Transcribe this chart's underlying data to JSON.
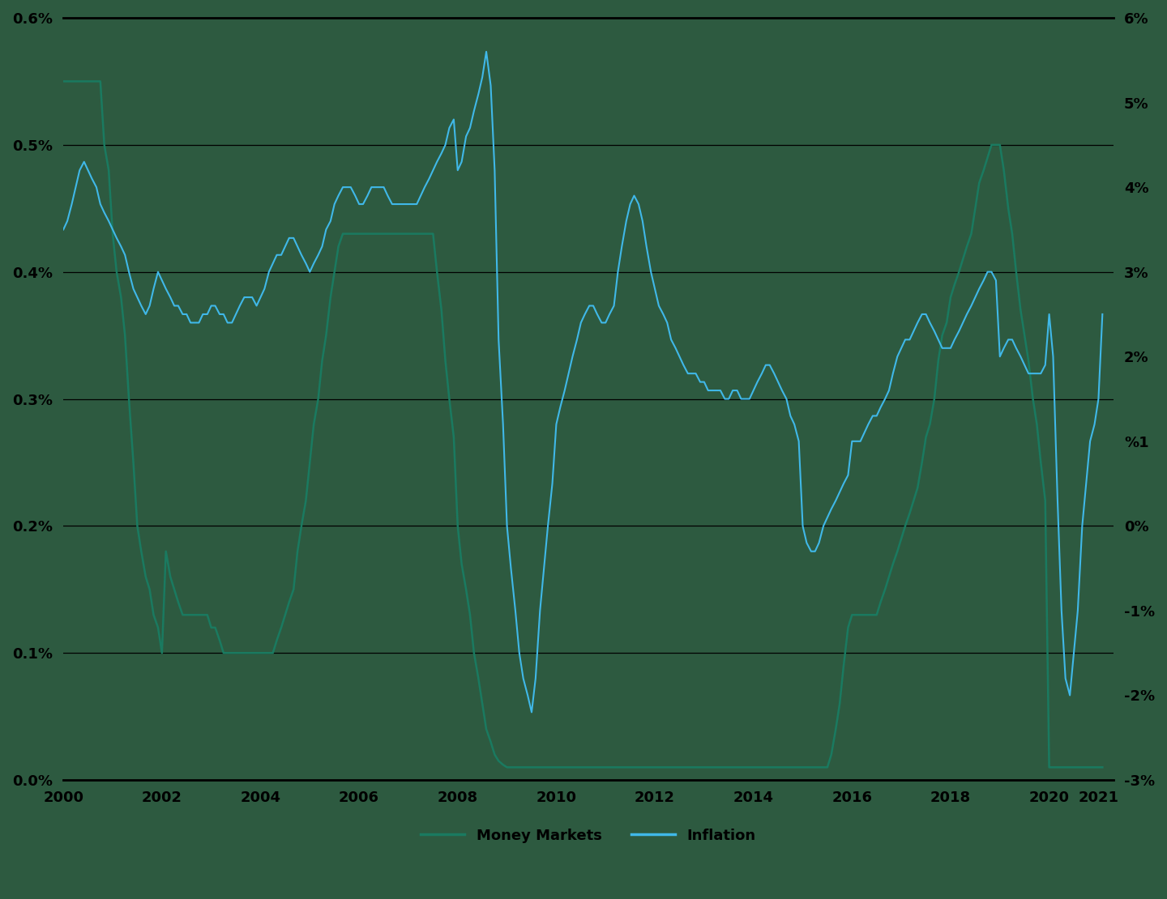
{
  "background_color": "#2d5a40",
  "line_color_mm": "#1a7a60",
  "line_color_inf": "#40b8e8",
  "grid_color": "#000000",
  "legend_mm": "Money Markets",
  "legend_inf": "Inflation",
  "left_ylim": [
    0.0,
    0.006
  ],
  "right_ylim": [
    -0.03,
    0.06
  ],
  "left_yticks": [
    0.0,
    0.001,
    0.002,
    0.003,
    0.004,
    0.005,
    0.006
  ],
  "left_yticklabels": [
    "0.0%",
    "0.1%",
    "0.2%",
    "0.3%",
    "0.4%",
    "0.5%",
    "0.6%"
  ],
  "right_yticks": [
    -0.03,
    -0.02,
    -0.01,
    0.0,
    0.01,
    0.02,
    0.03,
    0.04,
    0.05,
    0.06
  ],
  "right_yticklabels": [
    "-3%",
    "-2%",
    "-1%",
    "0%",
    "%1",
    "2%",
    "3%",
    "4%",
    "5%",
    "6%"
  ],
  "xlim": [
    2000,
    2021.3
  ],
  "xticks": [
    2000,
    2002,
    2004,
    2006,
    2008,
    2010,
    2012,
    2014,
    2016,
    2018,
    2020,
    2021
  ],
  "money_markets_x": [
    2000.0,
    2000.08,
    2000.17,
    2000.25,
    2000.33,
    2000.42,
    2000.5,
    2000.58,
    2000.67,
    2000.75,
    2000.83,
    2000.92,
    2001.0,
    2001.08,
    2001.17,
    2001.25,
    2001.33,
    2001.42,
    2001.5,
    2001.58,
    2001.67,
    2001.75,
    2001.83,
    2001.92,
    2002.0,
    2002.08,
    2002.17,
    2002.25,
    2002.33,
    2002.42,
    2002.5,
    2002.58,
    2002.67,
    2002.75,
    2002.83,
    2002.92,
    2003.0,
    2003.08,
    2003.17,
    2003.25,
    2003.33,
    2003.42,
    2003.5,
    2003.58,
    2003.67,
    2003.75,
    2003.83,
    2003.92,
    2004.0,
    2004.08,
    2004.17,
    2004.25,
    2004.33,
    2004.42,
    2004.5,
    2004.58,
    2004.67,
    2004.75,
    2004.83,
    2004.92,
    2005.0,
    2005.08,
    2005.17,
    2005.25,
    2005.33,
    2005.42,
    2005.5,
    2005.58,
    2005.67,
    2005.75,
    2005.83,
    2005.92,
    2006.0,
    2006.08,
    2006.17,
    2006.25,
    2006.33,
    2006.42,
    2006.5,
    2006.58,
    2006.67,
    2006.75,
    2006.83,
    2006.92,
    2007.0,
    2007.08,
    2007.17,
    2007.25,
    2007.33,
    2007.42,
    2007.5,
    2007.58,
    2007.67,
    2007.75,
    2007.83,
    2007.92,
    2008.0,
    2008.08,
    2008.17,
    2008.25,
    2008.33,
    2008.42,
    2008.5,
    2008.58,
    2008.67,
    2008.75,
    2008.83,
    2008.92,
    2009.0,
    2009.08,
    2009.17,
    2009.25,
    2009.33,
    2009.42,
    2009.5,
    2009.58,
    2009.67,
    2009.75,
    2009.83,
    2009.92,
    2010.0,
    2010.08,
    2010.17,
    2010.25,
    2010.33,
    2010.42,
    2010.5,
    2010.58,
    2010.67,
    2010.75,
    2010.83,
    2010.92,
    2011.0,
    2011.08,
    2011.17,
    2011.25,
    2011.33,
    2011.42,
    2011.5,
    2011.58,
    2011.67,
    2011.75,
    2011.83,
    2011.92,
    2012.0,
    2012.08,
    2012.17,
    2012.25,
    2012.33,
    2012.42,
    2012.5,
    2012.58,
    2012.67,
    2012.75,
    2012.83,
    2012.92,
    2013.0,
    2013.08,
    2013.17,
    2013.25,
    2013.33,
    2013.42,
    2013.5,
    2013.58,
    2013.67,
    2013.75,
    2013.83,
    2013.92,
    2014.0,
    2014.08,
    2014.17,
    2014.25,
    2014.33,
    2014.42,
    2014.5,
    2014.58,
    2014.67,
    2014.75,
    2014.83,
    2014.92,
    2015.0,
    2015.08,
    2015.17,
    2015.25,
    2015.33,
    2015.42,
    2015.5,
    2015.58,
    2015.67,
    2015.75,
    2015.83,
    2015.92,
    2016.0,
    2016.08,
    2016.17,
    2016.25,
    2016.33,
    2016.42,
    2016.5,
    2016.58,
    2016.67,
    2016.75,
    2016.83,
    2016.92,
    2017.0,
    2017.08,
    2017.17,
    2017.25,
    2017.33,
    2017.42,
    2017.5,
    2017.58,
    2017.67,
    2017.75,
    2017.83,
    2017.92,
    2018.0,
    2018.08,
    2018.17,
    2018.25,
    2018.33,
    2018.42,
    2018.5,
    2018.58,
    2018.67,
    2018.75,
    2018.83,
    2018.92,
    2019.0,
    2019.08,
    2019.17,
    2019.25,
    2019.33,
    2019.42,
    2019.5,
    2019.58,
    2019.67,
    2019.75,
    2019.83,
    2019.92,
    2020.0,
    2020.08,
    2020.17,
    2020.25,
    2020.33,
    2020.42,
    2020.5,
    2020.58,
    2020.67,
    2020.75,
    2020.83,
    2020.92,
    2021.0,
    2021.08
  ],
  "money_markets_y": [
    0.0055,
    0.0055,
    0.0055,
    0.0055,
    0.0055,
    0.0055,
    0.0055,
    0.0055,
    0.0055,
    0.0055,
    0.005,
    0.0048,
    0.0043,
    0.004,
    0.0038,
    0.0035,
    0.003,
    0.0025,
    0.002,
    0.0018,
    0.0016,
    0.0015,
    0.0013,
    0.0012,
    0.001,
    0.0018,
    0.0016,
    0.0015,
    0.0014,
    0.0013,
    0.0013,
    0.0013,
    0.0013,
    0.0013,
    0.0013,
    0.0013,
    0.0012,
    0.0012,
    0.0011,
    0.001,
    0.001,
    0.001,
    0.001,
    0.001,
    0.001,
    0.001,
    0.001,
    0.001,
    0.001,
    0.001,
    0.001,
    0.001,
    0.0011,
    0.0012,
    0.0013,
    0.0014,
    0.0015,
    0.0018,
    0.002,
    0.0022,
    0.0025,
    0.0028,
    0.003,
    0.0033,
    0.0035,
    0.0038,
    0.004,
    0.0042,
    0.0043,
    0.0043,
    0.0043,
    0.0043,
    0.0043,
    0.0043,
    0.0043,
    0.0043,
    0.0043,
    0.0043,
    0.0043,
    0.0043,
    0.0043,
    0.0043,
    0.0043,
    0.0043,
    0.0043,
    0.0043,
    0.0043,
    0.0043,
    0.0043,
    0.0043,
    0.0043,
    0.004,
    0.0037,
    0.0033,
    0.003,
    0.0027,
    0.002,
    0.0017,
    0.0015,
    0.0013,
    0.001,
    0.0008,
    0.0006,
    0.0004,
    0.0003,
    0.0002,
    0.00015,
    0.00012,
    0.0001,
    0.0001,
    0.0001,
    0.0001,
    0.0001,
    0.0001,
    0.0001,
    0.0001,
    0.0001,
    0.0001,
    0.0001,
    0.0001,
    0.0001,
    0.0001,
    0.0001,
    0.0001,
    0.0001,
    0.0001,
    0.0001,
    0.0001,
    0.0001,
    0.0001,
    0.0001,
    0.0001,
    0.0001,
    0.0001,
    0.0001,
    0.0001,
    0.0001,
    0.0001,
    0.0001,
    0.0001,
    0.0001,
    0.0001,
    0.0001,
    0.0001,
    0.0001,
    0.0001,
    0.0001,
    0.0001,
    0.0001,
    0.0001,
    0.0001,
    0.0001,
    0.0001,
    0.0001,
    0.0001,
    0.0001,
    0.0001,
    0.0001,
    0.0001,
    0.0001,
    0.0001,
    0.0001,
    0.0001,
    0.0001,
    0.0001,
    0.0001,
    0.0001,
    0.0001,
    0.0001,
    0.0001,
    0.0001,
    0.0001,
    0.0001,
    0.0001,
    0.0001,
    0.0001,
    0.0001,
    0.0001,
    0.0001,
    0.0001,
    0.0001,
    0.0001,
    0.0001,
    0.0001,
    0.0001,
    0.0001,
    0.0001,
    0.0002,
    0.0004,
    0.0006,
    0.0009,
    0.0012,
    0.0013,
    0.0013,
    0.0013,
    0.0013,
    0.0013,
    0.0013,
    0.0013,
    0.0014,
    0.0015,
    0.0016,
    0.0017,
    0.0018,
    0.0019,
    0.002,
    0.0021,
    0.0022,
    0.0023,
    0.0025,
    0.0027,
    0.0028,
    0.003,
    0.0033,
    0.0035,
    0.0036,
    0.0038,
    0.0039,
    0.004,
    0.0041,
    0.0042,
    0.0043,
    0.0045,
    0.0047,
    0.0048,
    0.0049,
    0.005,
    0.005,
    0.005,
    0.0048,
    0.0045,
    0.0043,
    0.004,
    0.0037,
    0.0035,
    0.0033,
    0.003,
    0.0028,
    0.0025,
    0.0022,
    0.0001,
    0.0001,
    0.0001,
    0.0001,
    0.0001,
    0.0001,
    0.0001,
    0.0001,
    0.0001,
    0.0001,
    0.0001,
    0.0001,
    0.0001,
    0.0001
  ],
  "inflation_x": [
    2000.0,
    2000.08,
    2000.17,
    2000.25,
    2000.33,
    2000.42,
    2000.5,
    2000.58,
    2000.67,
    2000.75,
    2000.83,
    2000.92,
    2001.0,
    2001.08,
    2001.17,
    2001.25,
    2001.33,
    2001.42,
    2001.5,
    2001.58,
    2001.67,
    2001.75,
    2001.83,
    2001.92,
    2002.0,
    2002.08,
    2002.17,
    2002.25,
    2002.33,
    2002.42,
    2002.5,
    2002.58,
    2002.67,
    2002.75,
    2002.83,
    2002.92,
    2003.0,
    2003.08,
    2003.17,
    2003.25,
    2003.33,
    2003.42,
    2003.5,
    2003.58,
    2003.67,
    2003.75,
    2003.83,
    2003.92,
    2004.0,
    2004.08,
    2004.17,
    2004.25,
    2004.33,
    2004.42,
    2004.5,
    2004.58,
    2004.67,
    2004.75,
    2004.83,
    2004.92,
    2005.0,
    2005.08,
    2005.17,
    2005.25,
    2005.33,
    2005.42,
    2005.5,
    2005.58,
    2005.67,
    2005.75,
    2005.83,
    2005.92,
    2006.0,
    2006.08,
    2006.17,
    2006.25,
    2006.33,
    2006.42,
    2006.5,
    2006.58,
    2006.67,
    2006.75,
    2006.83,
    2006.92,
    2007.0,
    2007.08,
    2007.17,
    2007.25,
    2007.33,
    2007.42,
    2007.5,
    2007.58,
    2007.67,
    2007.75,
    2007.83,
    2007.92,
    2008.0,
    2008.08,
    2008.17,
    2008.25,
    2008.33,
    2008.42,
    2008.5,
    2008.58,
    2008.67,
    2008.75,
    2008.83,
    2008.92,
    2009.0,
    2009.08,
    2009.17,
    2009.25,
    2009.33,
    2009.42,
    2009.5,
    2009.58,
    2009.67,
    2009.75,
    2009.83,
    2009.92,
    2010.0,
    2010.08,
    2010.17,
    2010.25,
    2010.33,
    2010.42,
    2010.5,
    2010.58,
    2010.67,
    2010.75,
    2010.83,
    2010.92,
    2011.0,
    2011.08,
    2011.17,
    2011.25,
    2011.33,
    2011.42,
    2011.5,
    2011.58,
    2011.67,
    2011.75,
    2011.83,
    2011.92,
    2012.0,
    2012.08,
    2012.17,
    2012.25,
    2012.33,
    2012.42,
    2012.5,
    2012.58,
    2012.67,
    2012.75,
    2012.83,
    2012.92,
    2013.0,
    2013.08,
    2013.17,
    2013.25,
    2013.33,
    2013.42,
    2013.5,
    2013.58,
    2013.67,
    2013.75,
    2013.83,
    2013.92,
    2014.0,
    2014.08,
    2014.17,
    2014.25,
    2014.33,
    2014.42,
    2014.5,
    2014.58,
    2014.67,
    2014.75,
    2014.83,
    2014.92,
    2015.0,
    2015.08,
    2015.17,
    2015.25,
    2015.33,
    2015.42,
    2015.5,
    2015.58,
    2015.67,
    2015.75,
    2015.83,
    2015.92,
    2016.0,
    2016.08,
    2016.17,
    2016.25,
    2016.33,
    2016.42,
    2016.5,
    2016.58,
    2016.67,
    2016.75,
    2016.83,
    2016.92,
    2017.0,
    2017.08,
    2017.17,
    2017.25,
    2017.33,
    2017.42,
    2017.5,
    2017.58,
    2017.67,
    2017.75,
    2017.83,
    2017.92,
    2018.0,
    2018.08,
    2018.17,
    2018.25,
    2018.33,
    2018.42,
    2018.5,
    2018.58,
    2018.67,
    2018.75,
    2018.83,
    2018.92,
    2019.0,
    2019.08,
    2019.17,
    2019.25,
    2019.33,
    2019.42,
    2019.5,
    2019.58,
    2019.67,
    2019.75,
    2019.83,
    2019.92,
    2020.0,
    2020.08,
    2020.17,
    2020.25,
    2020.33,
    2020.42,
    2020.5,
    2020.58,
    2020.67,
    2020.75,
    2020.83,
    2020.92,
    2021.0,
    2021.08
  ],
  "inflation_y": [
    0.035,
    0.036,
    0.038,
    0.04,
    0.042,
    0.043,
    0.042,
    0.041,
    0.04,
    0.038,
    0.037,
    0.036,
    0.035,
    0.034,
    0.033,
    0.032,
    0.03,
    0.028,
    0.027,
    0.026,
    0.025,
    0.026,
    0.028,
    0.03,
    0.029,
    0.028,
    0.027,
    0.026,
    0.026,
    0.025,
    0.025,
    0.024,
    0.024,
    0.024,
    0.025,
    0.025,
    0.026,
    0.026,
    0.025,
    0.025,
    0.024,
    0.024,
    0.025,
    0.026,
    0.027,
    0.027,
    0.027,
    0.026,
    0.027,
    0.028,
    0.03,
    0.031,
    0.032,
    0.032,
    0.033,
    0.034,
    0.034,
    0.033,
    0.032,
    0.031,
    0.03,
    0.031,
    0.032,
    0.033,
    0.035,
    0.036,
    0.038,
    0.039,
    0.04,
    0.04,
    0.04,
    0.039,
    0.038,
    0.038,
    0.039,
    0.04,
    0.04,
    0.04,
    0.04,
    0.039,
    0.038,
    0.038,
    0.038,
    0.038,
    0.038,
    0.038,
    0.038,
    0.039,
    0.04,
    0.041,
    0.042,
    0.043,
    0.044,
    0.045,
    0.047,
    0.048,
    0.042,
    0.043,
    0.046,
    0.047,
    0.049,
    0.051,
    0.053,
    0.056,
    0.052,
    0.042,
    0.022,
    0.012,
    0.0,
    -0.005,
    -0.01,
    -0.015,
    -0.018,
    -0.02,
    -0.022,
    -0.018,
    -0.01,
    -0.005,
    0.0,
    0.005,
    0.012,
    0.014,
    0.016,
    0.018,
    0.02,
    0.022,
    0.024,
    0.025,
    0.026,
    0.026,
    0.025,
    0.024,
    0.024,
    0.025,
    0.026,
    0.03,
    0.033,
    0.036,
    0.038,
    0.039,
    0.038,
    0.036,
    0.033,
    0.03,
    0.028,
    0.026,
    0.025,
    0.024,
    0.022,
    0.021,
    0.02,
    0.019,
    0.018,
    0.018,
    0.018,
    0.017,
    0.017,
    0.016,
    0.016,
    0.016,
    0.016,
    0.015,
    0.015,
    0.016,
    0.016,
    0.015,
    0.015,
    0.015,
    0.016,
    0.017,
    0.018,
    0.019,
    0.019,
    0.018,
    0.017,
    0.016,
    0.015,
    0.013,
    0.012,
    0.01,
    0.0,
    -0.002,
    -0.003,
    -0.003,
    -0.002,
    0.0,
    0.001,
    0.002,
    0.003,
    0.004,
    0.005,
    0.006,
    0.01,
    0.01,
    0.01,
    0.011,
    0.012,
    0.013,
    0.013,
    0.014,
    0.015,
    0.016,
    0.018,
    0.02,
    0.021,
    0.022,
    0.022,
    0.023,
    0.024,
    0.025,
    0.025,
    0.024,
    0.023,
    0.022,
    0.021,
    0.021,
    0.021,
    0.022,
    0.023,
    0.024,
    0.025,
    0.026,
    0.027,
    0.028,
    0.029,
    0.03,
    0.03,
    0.029,
    0.02,
    0.021,
    0.022,
    0.022,
    0.021,
    0.02,
    0.019,
    0.018,
    0.018,
    0.018,
    0.018,
    0.019,
    0.025,
    0.02,
    0.003,
    -0.01,
    -0.018,
    -0.02,
    -0.015,
    -0.01,
    0.0,
    0.005,
    0.01,
    0.012,
    0.015,
    0.025
  ]
}
